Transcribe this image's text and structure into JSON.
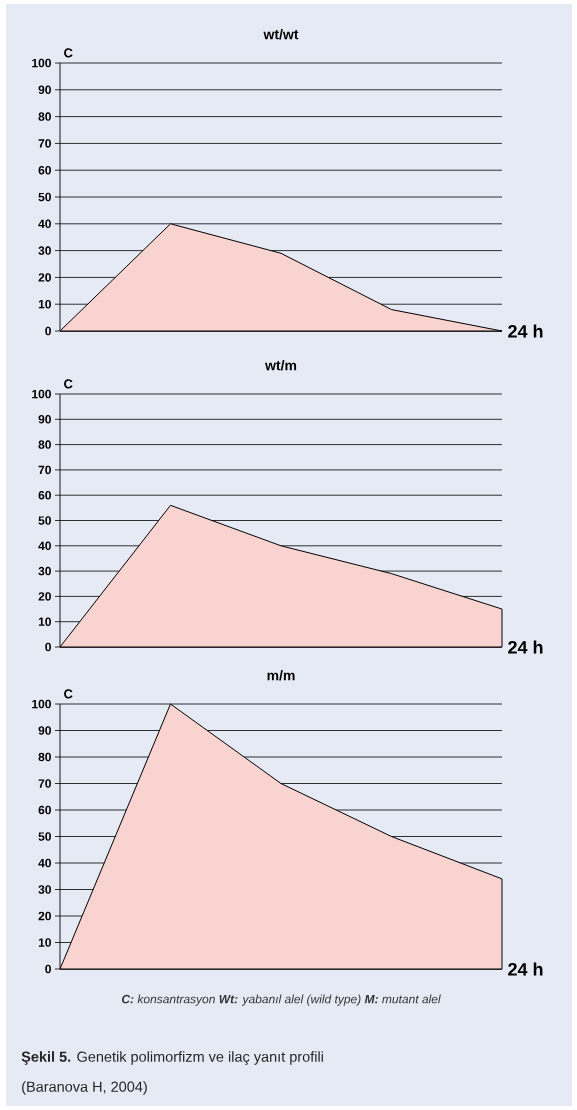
{
  "chart_data": [
    {
      "type": "area",
      "title": "wt/wt",
      "ylabel": "C",
      "xlabel": "24 h",
      "categories": [
        null,
        null,
        null,
        null,
        null
      ],
      "series": [
        {
          "color": "#f9d3d0",
          "values": [
            0,
            40,
            29,
            8,
            0
          ]
        }
      ],
      "ylim": [
        0,
        100
      ],
      "yticks": [
        0,
        10,
        20,
        30,
        40,
        50,
        60,
        70,
        80,
        90,
        100
      ],
      "grid": "y"
    },
    {
      "type": "area",
      "title": "wt/m",
      "ylabel": "C",
      "xlabel": "24 h",
      "categories": [
        null,
        null,
        null,
        null,
        null
      ],
      "series": [
        {
          "color": "#f9d3d0",
          "values": [
            0,
            56,
            40,
            29,
            15
          ]
        }
      ],
      "ylim": [
        0,
        100
      ],
      "yticks": [
        0,
        10,
        20,
        30,
        40,
        50,
        60,
        70,
        80,
        90,
        100
      ],
      "grid": "y"
    },
    {
      "type": "area",
      "title": "m/m",
      "ylabel": "C",
      "xlabel": "24 h",
      "categories": [
        null,
        null,
        null,
        null,
        null
      ],
      "series": [
        {
          "color": "#f9d3d0",
          "values": [
            0,
            100,
            70,
            50,
            34
          ]
        }
      ],
      "ylim": [
        0,
        100
      ],
      "yticks": [
        0,
        10,
        20,
        30,
        40,
        50,
        60,
        70,
        80,
        90,
        100
      ],
      "grid": "y",
      "annotations": [
        "**C:** konsantrasyon   **Wt:** yabanıl alel (wild type)   **M:** mutant alel",
        "**Şekil 5.** Genetik polimorfizm ve ilaç yanıt profili",
        "(Baranova H, 2004)"
      ]
    }
  ]
}
